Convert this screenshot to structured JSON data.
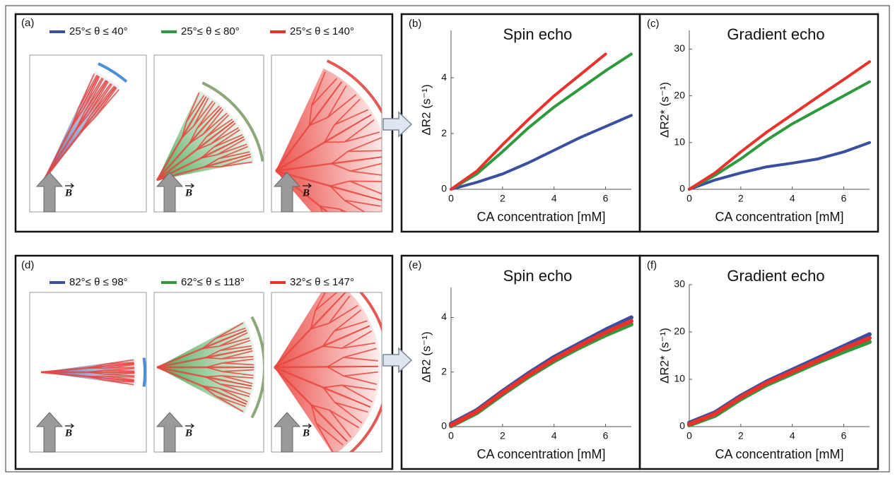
{
  "panels": [
    {
      "label": "(a)",
      "field_label": "B",
      "legend": [
        {
          "text": "25°≤ θ ≤ 40°",
          "color": "#3a4fa0"
        },
        {
          "text": "25°≤ θ ≤ 80°",
          "color": "#2e9a3c"
        },
        {
          "text": "25°≤ θ ≤ 140°",
          "color": "#e8322b"
        }
      ]
    },
    {
      "label": "(d)",
      "field_label": "B",
      "legend": [
        {
          "text": "82°≤ θ ≤ 98°",
          "color": "#3a4fa0"
        },
        {
          "text": "62°≤ θ ≤ 118°",
          "color": "#2e9a3c"
        },
        {
          "text": "32°≤ θ ≤ 147°",
          "color": "#e8322b"
        }
      ]
    }
  ],
  "chart_data": [
    {
      "type": "line",
      "label": "(b)",
      "title": "Spin echo",
      "xlabel": "CA concentration [mM]",
      "ylabel": "ΔR2 (s⁻¹)",
      "x": [
        0,
        1,
        2,
        3,
        4,
        5,
        6,
        7
      ],
      "xlim": [
        0,
        7
      ],
      "xticks": [
        0,
        2,
        4,
        6
      ],
      "ylim": [
        0,
        5.7
      ],
      "yticks": [
        0,
        2,
        4
      ],
      "series": [
        {
          "color": "#3a4fa0",
          "values": [
            0,
            0.25,
            0.55,
            0.95,
            1.4,
            1.85,
            2.25,
            2.65
          ]
        },
        {
          "color": "#2e9a3c",
          "values": [
            0,
            0.55,
            1.35,
            2.2,
            2.95,
            3.6,
            4.25,
            4.85
          ]
        },
        {
          "color": "#e8322b",
          "values": [
            0,
            0.65,
            1.6,
            2.5,
            3.35,
            4.1,
            4.85,
            null
          ]
        }
      ]
    },
    {
      "type": "line",
      "label": "(c)",
      "title": "Gradient echo",
      "xlabel": "CA concentration [mM]",
      "ylabel": "ΔR2* (s⁻¹)",
      "x": [
        0,
        1,
        2,
        3,
        4,
        5,
        6,
        7
      ],
      "xlim": [
        0,
        7
      ],
      "xticks": [
        0,
        2,
        4,
        6
      ],
      "ylim": [
        0,
        34
      ],
      "yticks": [
        0,
        10,
        20,
        30
      ],
      "series": [
        {
          "color": "#3a4fa0",
          "values": [
            0,
            2,
            3.5,
            4.8,
            5.6,
            6.5,
            8,
            10
          ]
        },
        {
          "color": "#2e9a3c",
          "values": [
            0,
            3,
            6.5,
            10.5,
            14,
            17,
            20,
            23
          ]
        },
        {
          "color": "#e8322b",
          "values": [
            0,
            3.5,
            8,
            12.2,
            16,
            19.8,
            23.5,
            27.3
          ]
        }
      ]
    },
    {
      "type": "line",
      "label": "(e)",
      "title": "Spin echo",
      "xlabel": "CA concentration [mM]",
      "ylabel": "ΔR2 (s⁻¹)",
      "x": [
        0,
        1,
        2,
        3,
        4,
        5,
        6,
        7
      ],
      "xlim": [
        0,
        7
      ],
      "xticks": [
        0,
        2,
        4,
        6
      ],
      "ylim": [
        0,
        5.1
      ],
      "yticks": [
        0,
        2,
        4
      ],
      "series": [
        {
          "color": "#3a4fa0",
          "values": [
            0.1,
            0.6,
            1.3,
            1.95,
            2.55,
            3.05,
            3.55,
            4.0
          ]
        },
        {
          "color": "#2e9a3c",
          "values": [
            0.02,
            0.5,
            1.18,
            1.82,
            2.4,
            2.9,
            3.35,
            3.75
          ]
        },
        {
          "color": "#e8322b",
          "values": [
            0.05,
            0.55,
            1.24,
            1.88,
            2.47,
            2.97,
            3.45,
            3.87
          ]
        }
      ]
    },
    {
      "type": "line",
      "label": "(f)",
      "title": "Gradient echo",
      "xlabel": "CA concentration [mM]",
      "ylabel": "ΔR2* (s⁻¹)",
      "x": [
        0,
        1,
        2,
        3,
        4,
        5,
        6,
        7
      ],
      "xlim": [
        0,
        7
      ],
      "xticks": [
        0,
        2,
        4,
        6
      ],
      "ylim": [
        0,
        30
      ],
      "yticks": [
        0,
        10,
        20,
        30
      ],
      "series": [
        {
          "color": "#3a4fa0",
          "values": [
            0.8,
            3,
            6.5,
            9.5,
            12,
            14.5,
            17,
            19.5
          ]
        },
        {
          "color": "#2e9a3c",
          "values": [
            0.3,
            2.3,
            5.8,
            8.8,
            11.2,
            13.6,
            15.8,
            17.9
          ]
        },
        {
          "color": "#e8322b",
          "values": [
            0.5,
            2.7,
            6.2,
            9.2,
            11.6,
            14,
            16.5,
            18.7
          ]
        }
      ]
    }
  ]
}
